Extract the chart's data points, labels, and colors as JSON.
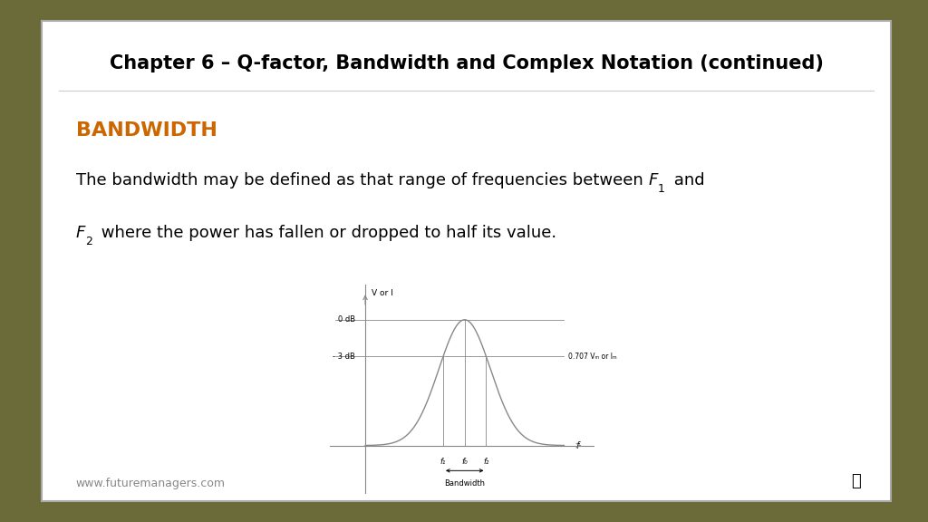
{
  "title": "Chapter 6 – Q-factor, Bandwidth and Complex Notation (continued)",
  "section_heading": "BANDWIDTH",
  "section_color": "#cc6600",
  "body_line1_prefix": "The bandwidth may be defined as that range of frequencies between ",
  "body_line1_F1": "F",
  "body_line1_F1_sub": "1",
  "body_line1_suffix": " and",
  "body_line2_F2": "F",
  "body_line2_F2_sub": "2",
  "body_line2_suffix": " where the power has fallen or dropped to half its value.",
  "footer_url": "www.futuremanagers.com",
  "background_color": "#ffffff",
  "outer_background": "#6b6b3a",
  "graph_ylabel": "V or I",
  "graph_xlabel": "f",
  "label_0dB": "0 dB",
  "label_3dB": "- 3 dB",
  "label_0707": "0.707 Vₘ or Iₘ",
  "label_f1": "f₁",
  "label_f0": "f₀",
  "label_f2": "f₂",
  "label_bandwidth": "Bandwidth"
}
